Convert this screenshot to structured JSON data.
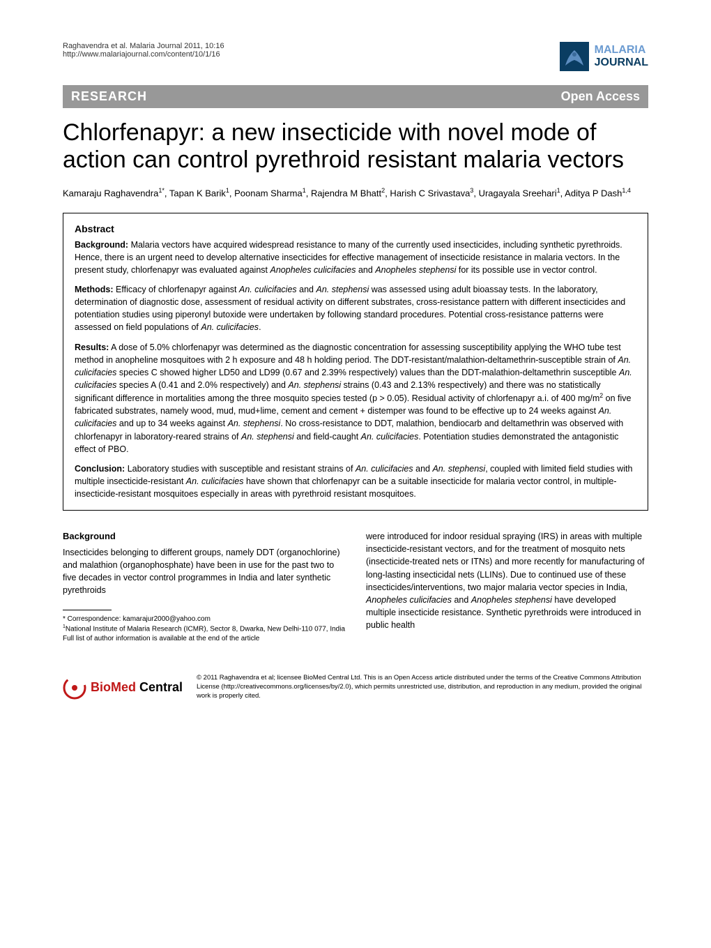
{
  "header": {
    "citation_line1": "Raghavendra et al. Malaria Journal 2011, 10:16",
    "citation_line2": "http://www.malariajournal.com/content/10/1/16",
    "journal_line1": "MALARIA",
    "journal_line2": "JOURNAL"
  },
  "banner": {
    "left": "RESEARCH",
    "right": "Open Access"
  },
  "title": "Chlorfenapyr: a new insecticide with novel mode of action can control pyrethroid resistant malaria vectors",
  "authors_html": "Kamaraju Raghavendra<sup>1*</sup>, Tapan K Barik<sup>1</sup>, Poonam Sharma<sup>1</sup>, Rajendra M Bhatt<sup>2</sup>, Harish C Srivastava<sup>3</sup>, Uragayala Sreehari<sup>1</sup>, Aditya P Dash<sup>1,4</sup>",
  "abstract": {
    "heading": "Abstract",
    "background_label": "Background:",
    "background_text": " Malaria vectors have acquired widespread resistance to many of the currently used insecticides, including synthetic pyrethroids. Hence, there is an urgent need to develop alternative insecticides for effective management of insecticide resistance in malaria vectors. In the present study, chlorfenapyr was evaluated against <i>Anopheles culicifacies</i> and <i>Anopheles stephensi</i> for its possible use in vector control.",
    "methods_label": "Methods:",
    "methods_text": " Efficacy of chlorfenapyr against <i>An. culicifacies</i> and <i>An. stephensi</i> was assessed using adult bioassay tests. In the laboratory, determination of diagnostic dose, assessment of residual activity on different substrates, cross-resistance pattern with different insecticides and potentiation studies using piperonyl butoxide were undertaken by following standard procedures. Potential cross-resistance patterns were assessed on field populations of <i>An. culicifacies</i>.",
    "results_label": "Results:",
    "results_text": " A dose of 5.0% chlorfenapyr was determined as the diagnostic concentration for assessing susceptibility applying the WHO tube test method in anopheline mosquitoes with 2 h exposure and 48 h holding period. The DDT-resistant/malathion-deltamethrin-susceptible strain of <i>An. culicifacies</i> species C showed higher LD50 and LD99 (0.67 and 2.39% respectively) values than the DDT-malathion-deltamethrin susceptible <i>An. culicifacies</i> species A (0.41 and 2.0% respectively) and <i>An. stephensi</i> strains (0.43 and 2.13% respectively) and there was no statistically significant difference in mortalities among the three mosquito species tested (p > 0.05). Residual activity of chlorfenapyr a.i. of 400 mg/m<sup>2</sup> on five fabricated substrates, namely wood, mud, mud+lime, cement and cement + distemper was found to be effective up to 24 weeks against <i>An. culicifacies</i> and up to 34 weeks against <i>An. stephensi</i>. No cross-resistance to DDT, malathion, bendiocarb and deltamethrin was observed with chlorfenapyr in laboratory-reared strains of <i>An. stephensi</i> and field-caught <i>An. culicifacies</i>. Potentiation studies demonstrated the antagonistic effect of PBO.",
    "conclusion_label": "Conclusion:",
    "conclusion_text": " Laboratory studies with susceptible and resistant strains of <i>An. culicifacies</i> and <i>An. stephensi</i>, coupled with limited field studies with multiple insecticide-resistant <i>An. culicifacies</i> have shown that chlorfenapyr can be a suitable insecticide for malaria vector control, in multiple-insecticide-resistant mosquitoes especially in areas with pyrethroid resistant mosquitoes."
  },
  "body": {
    "background_heading": "Background",
    "col1_html": "Insecticides belonging to different groups, namely DDT (organochlorine) and malathion (organophosphate) have been in use for the past two to five decades in vector control programmes in India and later synthetic pyrethroids",
    "col2_html": "were introduced for indoor residual spraying (IRS) in areas with multiple insecticide-resistant vectors, and for the treatment of mosquito nets (insecticide-treated nets or ITNs) and more recently for manufacturing of long-lasting insecticidal nets (LLINs). Due to continued use of these insecticides/interventions, two major malaria vector species in India, <i>Anopheles culicifacies</i> and <i>Anopheles stephensi</i> have developed multiple insecticide resistance. Synthetic pyrethroids were introduced in public health"
  },
  "footnotes": {
    "correspondence": "* Correspondence: kamarajur2000@yahoo.com",
    "affiliation": "<sup>1</sup>National Institute of Malaria Research (ICMR), Sector 8, Dwarka, New Delhi-110 077, India",
    "full_list": "Full list of author information is available at the end of the article"
  },
  "footer": {
    "bmc_bio": "BioMed",
    "bmc_central": " Central",
    "license": "© 2011 Raghavendra et al; licensee BioMed Central Ltd. This is an Open Access article distributed under the terms of the Creative Commons Attribution License (http://creativecommons.org/licenses/by/2.0), which permits unrestricted use, distribution, and reproduction in any medium, provided the original work is properly cited."
  },
  "colors": {
    "banner_bg": "#989898",
    "journal_dark": "#0a3d62",
    "journal_light": "#6b9bd1",
    "bmc_red": "#c01818"
  }
}
